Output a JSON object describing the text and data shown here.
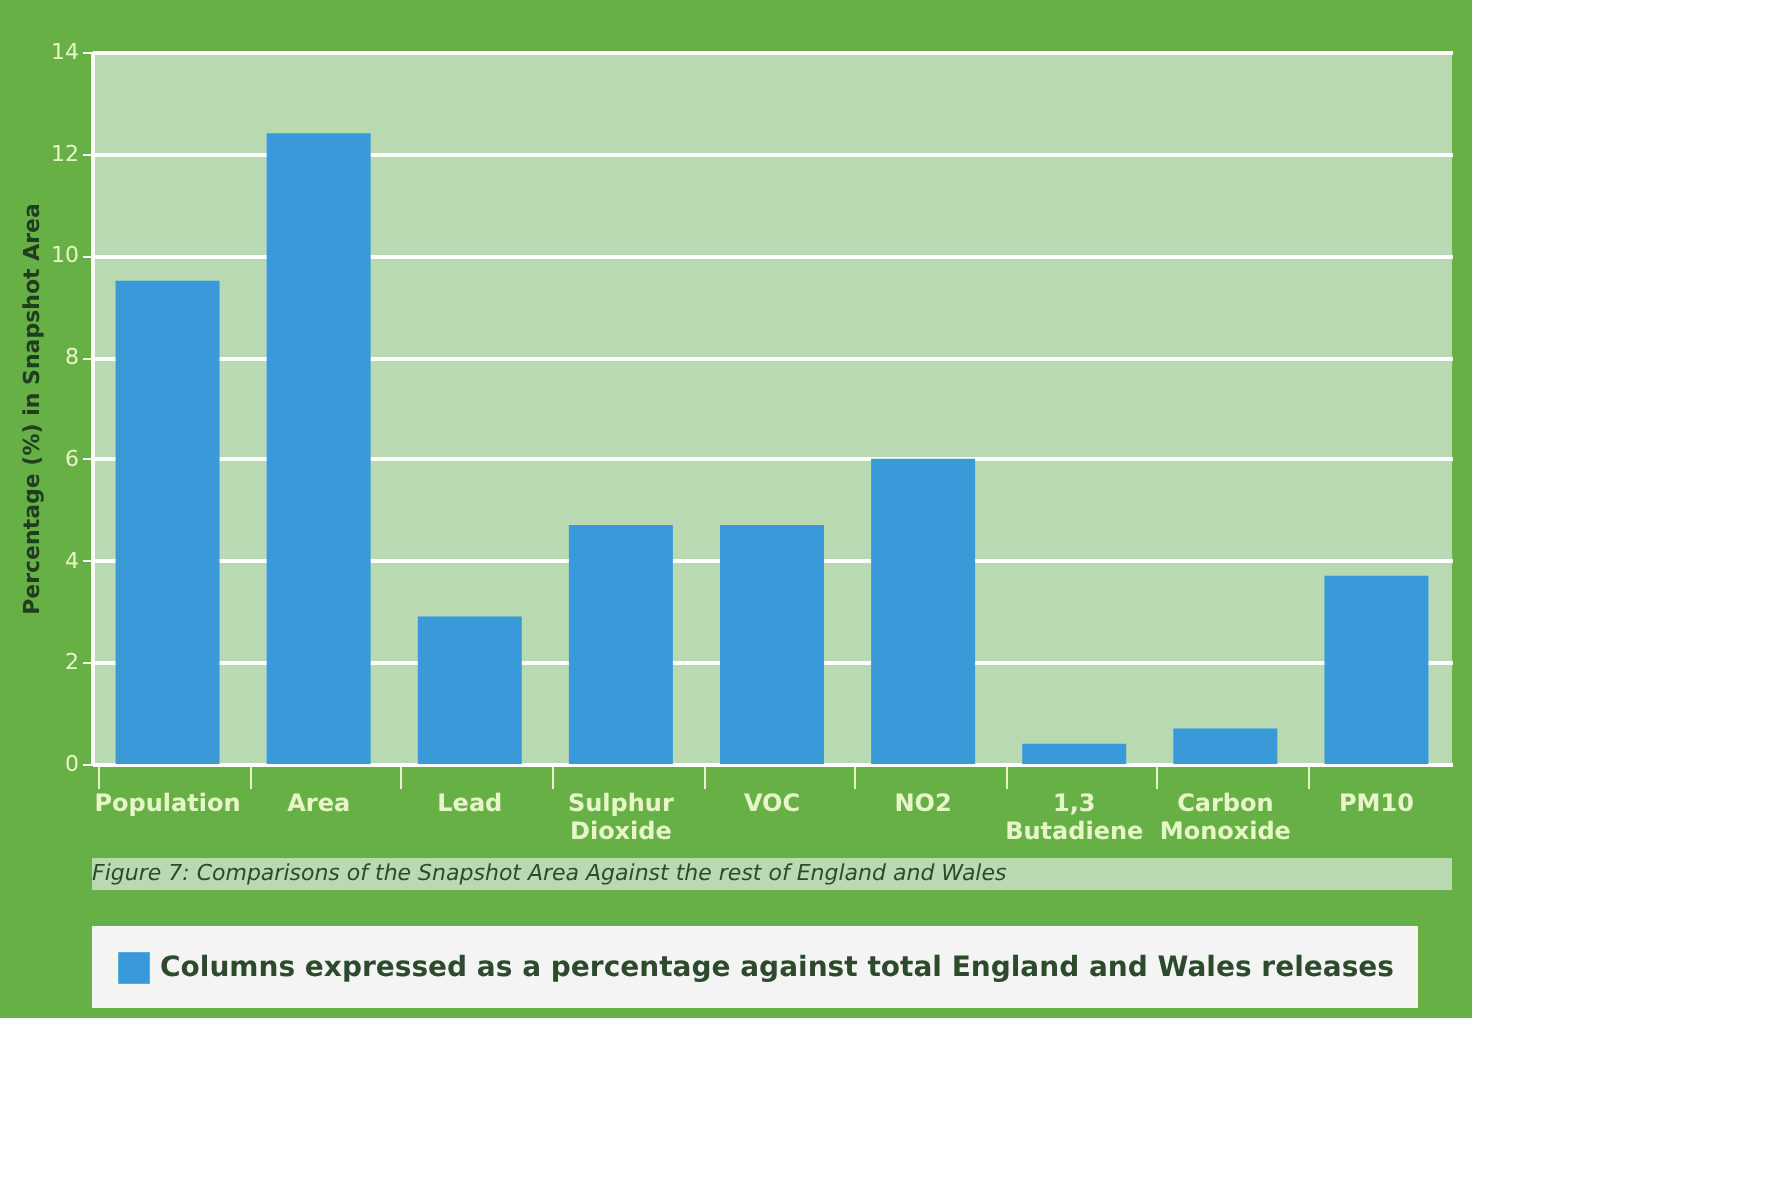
{
  "chart_data": {
    "type": "bar",
    "ylabel": "Percentage (%) in Snapshot Area",
    "categories": [
      "Population",
      "Area",
      "Lead",
      "Sulphur Dioxide",
      "VOC",
      "NO2",
      "1,3 Butadiene",
      "Carbon Monoxide",
      "PM10"
    ],
    "series": [
      {
        "name": "Columns expressed as a percentage against total England and Wales releases",
        "color": "#3a9ad9",
        "values": [
          9.5,
          12.4,
          2.9,
          4.7,
          4.7,
          6.0,
          0.4,
          0.7,
          3.7
        ]
      }
    ],
    "ylim": [
      0,
      14
    ],
    "yticks": [
      0,
      2,
      4,
      6,
      8,
      10,
      12,
      14
    ],
    "grid": "y",
    "legend": "bottom",
    "annotations": [
      "Figure 7: Comparisons of the Snapshot Area Against the rest of England and Wales"
    ]
  }
}
